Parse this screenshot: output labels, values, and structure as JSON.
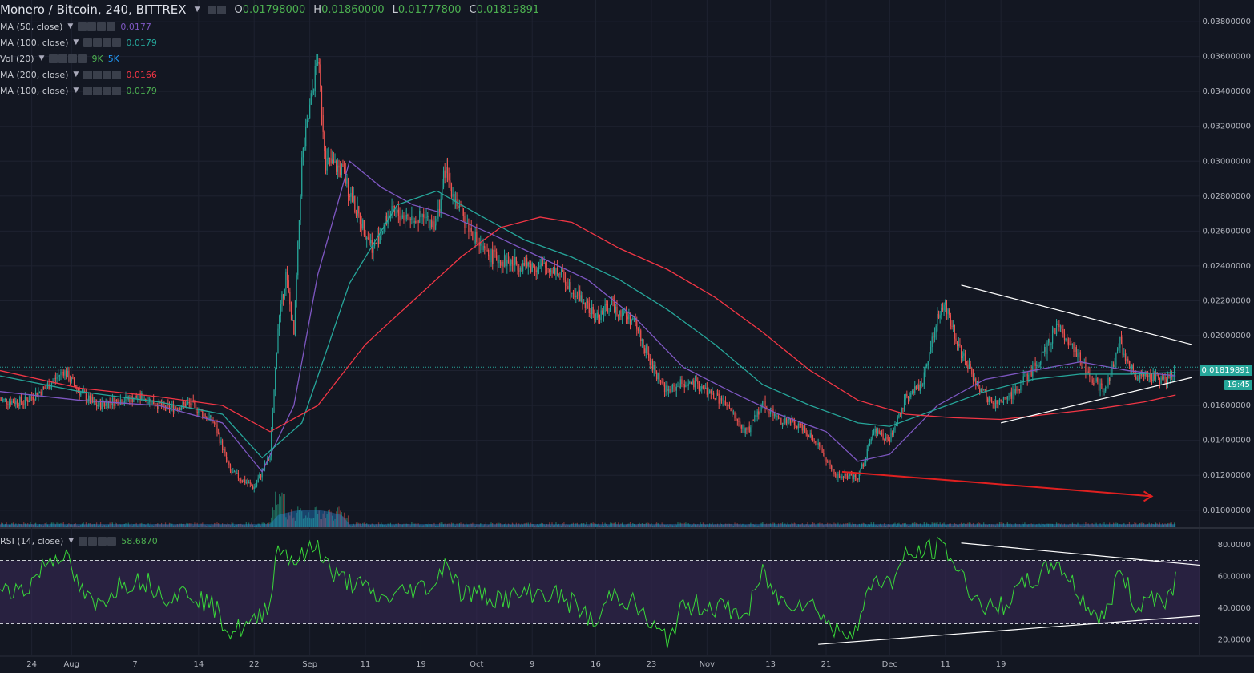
{
  "header": {
    "symbol": "Monero / Bitcoin, 240, BITTREX",
    "ohlc": [
      {
        "k": "O",
        "v": "0.01798000"
      },
      {
        "k": "H",
        "v": "0.01860000"
      },
      {
        "k": "L",
        "v": "0.01777800"
      },
      {
        "k": "C",
        "v": "0.01819891"
      }
    ]
  },
  "indicators": [
    {
      "label": "MA (50, close)",
      "value": "0.0177",
      "color": "#7e57c2"
    },
    {
      "label": "MA (100, close)",
      "value": "0.0179",
      "color": "#26a69a"
    },
    {
      "label": "Vol (20)",
      "value": "9K",
      "value2": "5K",
      "color": "#4caf50",
      "color2": "#2196f3"
    },
    {
      "label": "MA (200, close)",
      "value": "0.0166",
      "color": "#f23645"
    },
    {
      "label": "MA (100, close)",
      "value": "0.0179",
      "color": "#4caf50"
    }
  ],
  "rsi": {
    "label": "RSI (14, close)",
    "value": "58.6870",
    "color": "#4caf50"
  },
  "price_tag": "0.01819891",
  "countdown": "19:45",
  "colors": {
    "up": "#26a69a",
    "down": "#ef5350",
    "ma50": "#7e57c2",
    "ma100": "#26a69a",
    "ma200": "#f23645",
    "rsi": "#39d839",
    "rsi_band": "#3b2a5a"
  },
  "chart_data": [
    {
      "type": "candlestick",
      "title": "Monero / Bitcoin, 240, BITTREX",
      "y_ticks": [
        "0.03800000",
        "0.03600000",
        "0.03400000",
        "0.03200000",
        "0.03000000",
        "0.02800000",
        "0.02600000",
        "0.02400000",
        "0.02200000",
        "0.02000000",
        "0.01800000",
        "0.01600000",
        "0.01400000",
        "0.01200000",
        "0.01000000"
      ],
      "ylim": [
        0.0093,
        0.0386
      ],
      "x_ticks": [
        "24",
        "Aug",
        "7",
        "14",
        "22",
        "Sep",
        "11",
        "19",
        "Oct",
        "9",
        "16",
        "23",
        "Nov",
        "13",
        "21",
        "Dec",
        "11",
        "19"
      ],
      "close_path": [
        {
          "day": 0,
          "close": 0.0163
        },
        {
          "day": 3,
          "close": 0.0162
        },
        {
          "day": 6,
          "close": 0.0171
        },
        {
          "day": 8,
          "close": 0.018
        },
        {
          "day": 10,
          "close": 0.0168
        },
        {
          "day": 12,
          "close": 0.016
        },
        {
          "day": 15,
          "close": 0.0163
        },
        {
          "day": 18,
          "close": 0.0165
        },
        {
          "day": 21,
          "close": 0.0158
        },
        {
          "day": 24,
          "close": 0.0161
        },
        {
          "day": 27,
          "close": 0.015
        },
        {
          "day": 29,
          "close": 0.0122
        },
        {
          "day": 32,
          "close": 0.0113
        },
        {
          "day": 34,
          "close": 0.0131
        },
        {
          "day": 35,
          "close": 0.0205
        },
        {
          "day": 36,
          "close": 0.0235
        },
        {
          "day": 37,
          "close": 0.02
        },
        {
          "day": 38,
          "close": 0.03
        },
        {
          "day": 39,
          "close": 0.033
        },
        {
          "day": 40,
          "close": 0.036
        },
        {
          "day": 41,
          "close": 0.03
        },
        {
          "day": 43,
          "close": 0.0295
        },
        {
          "day": 45,
          "close": 0.027
        },
        {
          "day": 47,
          "close": 0.025
        },
        {
          "day": 49,
          "close": 0.027
        },
        {
          "day": 52,
          "close": 0.0268
        },
        {
          "day": 55,
          "close": 0.0265
        },
        {
          "day": 56,
          "close": 0.0295
        },
        {
          "day": 58,
          "close": 0.027
        },
        {
          "day": 61,
          "close": 0.0247
        },
        {
          "day": 64,
          "close": 0.0242
        },
        {
          "day": 67,
          "close": 0.024
        },
        {
          "day": 70,
          "close": 0.0238
        },
        {
          "day": 73,
          "close": 0.0222
        },
        {
          "day": 75,
          "close": 0.021
        },
        {
          "day": 77,
          "close": 0.0218
        },
        {
          "day": 80,
          "close": 0.0207
        },
        {
          "day": 82,
          "close": 0.0183
        },
        {
          "day": 84,
          "close": 0.0168
        },
        {
          "day": 86,
          "close": 0.0173
        },
        {
          "day": 88,
          "close": 0.0171
        },
        {
          "day": 91,
          "close": 0.0162
        },
        {
          "day": 94,
          "close": 0.0144
        },
        {
          "day": 96,
          "close": 0.0162
        },
        {
          "day": 98,
          "close": 0.0152
        },
        {
          "day": 101,
          "close": 0.0148
        },
        {
          "day": 103,
          "close": 0.0138
        },
        {
          "day": 105,
          "close": 0.012
        },
        {
          "day": 108,
          "close": 0.0118
        },
        {
          "day": 110,
          "close": 0.0145
        },
        {
          "day": 112,
          "close": 0.014
        },
        {
          "day": 114,
          "close": 0.0165
        },
        {
          "day": 116,
          "close": 0.0172
        },
        {
          "day": 118,
          "close": 0.021
        },
        {
          "day": 119,
          "close": 0.0218
        },
        {
          "day": 121,
          "close": 0.019
        },
        {
          "day": 123,
          "close": 0.0172
        },
        {
          "day": 125,
          "close": 0.016
        },
        {
          "day": 127,
          "close": 0.0165
        },
        {
          "day": 129,
          "close": 0.0175
        },
        {
          "day": 131,
          "close": 0.0186
        },
        {
          "day": 133,
          "close": 0.0205
        },
        {
          "day": 135,
          "close": 0.0195
        },
        {
          "day": 137,
          "close": 0.0178
        },
        {
          "day": 139,
          "close": 0.0168
        },
        {
          "day": 141,
          "close": 0.0196
        },
        {
          "day": 143,
          "close": 0.0175
        },
        {
          "day": 145,
          "close": 0.0177
        },
        {
          "day": 147,
          "close": 0.0174
        },
        {
          "day": 148,
          "close": 0.0182
        }
      ],
      "ma_series": [
        {
          "name": "MA (50, close)",
          "points": [
            [
              0,
              0.0168
            ],
            [
              10,
              0.0163
            ],
            [
              20,
              0.016
            ],
            [
              28,
              0.015
            ],
            [
              33,
              0.0122
            ],
            [
              37,
              0.016
            ],
            [
              40,
              0.0235
            ],
            [
              44,
              0.03
            ],
            [
              48,
              0.0285
            ],
            [
              52,
              0.0275
            ],
            [
              56,
              0.027
            ],
            [
              62,
              0.0258
            ],
            [
              68,
              0.0245
            ],
            [
              74,
              0.0232
            ],
            [
              80,
              0.021
            ],
            [
              86,
              0.0182
            ],
            [
              92,
              0.0168
            ],
            [
              98,
              0.0155
            ],
            [
              104,
              0.0145
            ],
            [
              108,
              0.0128
            ],
            [
              112,
              0.0132
            ],
            [
              118,
              0.016
            ],
            [
              124,
              0.0175
            ],
            [
              130,
              0.018
            ],
            [
              136,
              0.0185
            ],
            [
              142,
              0.018
            ],
            [
              148,
              0.0177
            ]
          ]
        },
        {
          "name": "MA (100, close)",
          "points": [
            [
              0,
              0.0177
            ],
            [
              10,
              0.0168
            ],
            [
              20,
              0.0162
            ],
            [
              28,
              0.0155
            ],
            [
              33,
              0.013
            ],
            [
              38,
              0.015
            ],
            [
              44,
              0.023
            ],
            [
              50,
              0.0275
            ],
            [
              55,
              0.0283
            ],
            [
              60,
              0.027
            ],
            [
              66,
              0.0255
            ],
            [
              72,
              0.0245
            ],
            [
              78,
              0.0232
            ],
            [
              84,
              0.0215
            ],
            [
              90,
              0.0195
            ],
            [
              96,
              0.0172
            ],
            [
              102,
              0.016
            ],
            [
              108,
              0.015
            ],
            [
              112,
              0.0148
            ],
            [
              118,
              0.0158
            ],
            [
              124,
              0.0168
            ],
            [
              130,
              0.0175
            ],
            [
              136,
              0.0178
            ],
            [
              142,
              0.0178
            ],
            [
              148,
              0.0179
            ]
          ]
        },
        {
          "name": "MA (200, close)",
          "points": [
            [
              0,
              0.018
            ],
            [
              10,
              0.017
            ],
            [
              20,
              0.0165
            ],
            [
              28,
              0.016
            ],
            [
              34,
              0.0145
            ],
            [
              40,
              0.016
            ],
            [
              46,
              0.0195
            ],
            [
              52,
              0.022
            ],
            [
              58,
              0.0245
            ],
            [
              63,
              0.0262
            ],
            [
              68,
              0.0268
            ],
            [
              72,
              0.0265
            ],
            [
              78,
              0.025
            ],
            [
              84,
              0.0238
            ],
            [
              90,
              0.0222
            ],
            [
              96,
              0.0202
            ],
            [
              102,
              0.018
            ],
            [
              108,
              0.0163
            ],
            [
              114,
              0.0155
            ],
            [
              120,
              0.0153
            ],
            [
              126,
              0.0152
            ],
            [
              132,
              0.0155
            ],
            [
              138,
              0.0158
            ],
            [
              144,
              0.0162
            ],
            [
              148,
              0.0166
            ]
          ]
        }
      ],
      "trendlines": [
        {
          "from": [
            121,
            0.0229
          ],
          "to": [
            150,
            0.0195
          ],
          "color": "#ffffff"
        },
        {
          "from": [
            126,
            0.015
          ],
          "to": [
            150,
            0.0176
          ],
          "color": "#ffffff"
        },
        {
          "from": [
            106,
            0.0122
          ],
          "to": [
            145,
            0.0108
          ],
          "color": "#e02020",
          "arrow": true
        }
      ]
    },
    {
      "type": "line",
      "title": "RSI (14, close)",
      "y_ticks": [
        "80.0000",
        "60.0000",
        "40.0000",
        "20.0000"
      ],
      "ylim": [
        10,
        90
      ],
      "bands": [
        30,
        70
      ],
      "points": [
        [
          0,
          55
        ],
        [
          3,
          50
        ],
        [
          6,
          70
        ],
        [
          8,
          75
        ],
        [
          10,
          52
        ],
        [
          12,
          40
        ],
        [
          15,
          55
        ],
        [
          18,
          58
        ],
        [
          21,
          48
        ],
        [
          24,
          50
        ],
        [
          27,
          40
        ],
        [
          29,
          25
        ],
        [
          32,
          30
        ],
        [
          34,
          45
        ],
        [
          35,
          80
        ],
        [
          37,
          70
        ],
        [
          38,
          72
        ],
        [
          40,
          80
        ],
        [
          42,
          60
        ],
        [
          45,
          55
        ],
        [
          48,
          45
        ],
        [
          52,
          52
        ],
        [
          55,
          55
        ],
        [
          56,
          72
        ],
        [
          58,
          50
        ],
        [
          61,
          48
        ],
        [
          64,
          46
        ],
        [
          67,
          50
        ],
        [
          70,
          48
        ],
        [
          73,
          40
        ],
        [
          75,
          28
        ],
        [
          77,
          50
        ],
        [
          80,
          42
        ],
        [
          82,
          28
        ],
        [
          84,
          20
        ],
        [
          86,
          40
        ],
        [
          88,
          42
        ],
        [
          91,
          40
        ],
        [
          94,
          35
        ],
        [
          96,
          62
        ],
        [
          98,
          45
        ],
        [
          101,
          44
        ],
        [
          103,
          40
        ],
        [
          105,
          25
        ],
        [
          108,
          28
        ],
        [
          110,
          60
        ],
        [
          112,
          55
        ],
        [
          114,
          72
        ],
        [
          116,
          75
        ],
        [
          118,
          78
        ],
        [
          119,
          78
        ],
        [
          121,
          60
        ],
        [
          123,
          45
        ],
        [
          125,
          38
        ],
        [
          127,
          45
        ],
        [
          129,
          55
        ],
        [
          131,
          60
        ],
        [
          133,
          70
        ],
        [
          135,
          55
        ],
        [
          137,
          40
        ],
        [
          139,
          32
        ],
        [
          141,
          65
        ],
        [
          143,
          40
        ],
        [
          145,
          48
        ],
        [
          147,
          46
        ],
        [
          148,
          58.69
        ]
      ],
      "trendlines": [
        {
          "from": [
            121,
            81
          ],
          "to": [
            151,
            67
          ],
          "color": "#ffffff"
        },
        {
          "from": [
            103,
            17
          ],
          "to": [
            151,
            35
          ],
          "color": "#ffffff"
        }
      ]
    }
  ]
}
